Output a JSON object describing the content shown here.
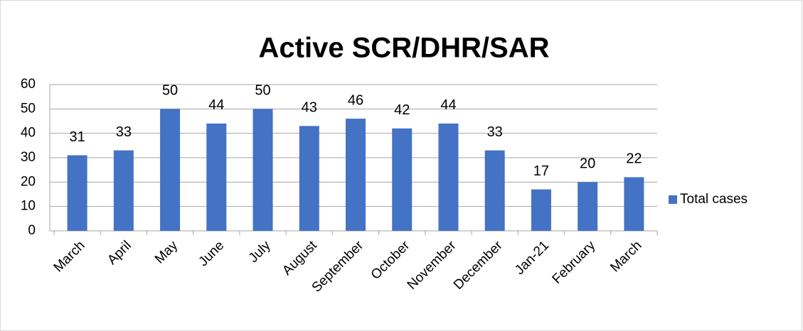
{
  "chart_data": {
    "type": "bar",
    "title": "Active SCR/DHR/SAR",
    "categories": [
      "March",
      "April",
      "May",
      "June",
      "July",
      "August",
      "September",
      "October",
      "November",
      "December",
      "Jan-21",
      "February",
      "March"
    ],
    "series": [
      {
        "name": "Total cases",
        "color": "#4472c4",
        "values": [
          31,
          33,
          50,
          44,
          50,
          43,
          46,
          42,
          44,
          33,
          17,
          20,
          22
        ]
      }
    ],
    "ylim": [
      0,
      60
    ],
    "yticks": [
      0,
      10,
      20,
      30,
      40,
      50,
      60
    ],
    "grid": true,
    "legend": "right"
  }
}
